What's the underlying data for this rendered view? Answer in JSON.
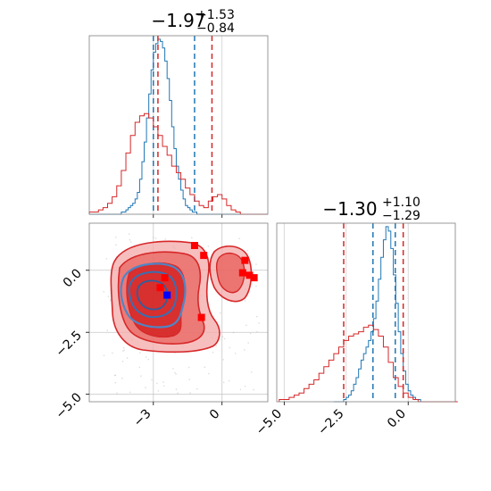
{
  "chart_data": [
    {
      "id": "hist-param1",
      "type": "histogram",
      "title": {
        "main": "−1.97",
        "sup": "+1.53",
        "sub": "−0.84"
      },
      "xlim": [
        -5.8,
        2.0
      ],
      "grid": true,
      "series": [
        {
          "color": "#1f77b4",
          "bin_start": -5.8,
          "bin_width": 0.1,
          "counts": [
            0,
            0,
            0,
            0,
            0,
            0,
            0,
            0,
            0,
            0,
            0,
            0,
            0,
            0,
            1,
            1,
            2,
            3,
            4,
            5,
            7,
            10,
            16,
            24,
            33,
            44,
            55,
            66,
            74,
            78,
            80,
            79,
            76,
            70,
            62,
            52,
            40,
            30,
            22,
            16,
            11,
            7,
            4,
            3,
            2,
            1,
            1,
            0,
            0,
            0,
            0,
            0,
            0,
            0,
            0,
            0,
            0,
            0,
            0,
            0,
            0,
            0,
            0,
            0,
            0,
            0,
            0,
            0,
            0,
            0,
            0,
            0,
            0,
            0,
            0,
            0,
            0,
            0
          ],
          "quantile_lines": [
            -3.0,
            -1.2
          ]
        },
        {
          "color": "#d62728",
          "bin_start": -5.8,
          "bin_width": 0.2,
          "counts": [
            1,
            1,
            2,
            3,
            5,
            8,
            13,
            20,
            28,
            36,
            42,
            45,
            46,
            44,
            40,
            36,
            31,
            27,
            22,
            19,
            16,
            12,
            9,
            6,
            4,
            3,
            6,
            8,
            9,
            7,
            4,
            2,
            1,
            0,
            0,
            0,
            0,
            0,
            0
          ],
          "quantile_lines": [
            -2.8,
            -0.44
          ]
        }
      ]
    },
    {
      "id": "hist-param2",
      "type": "histogram",
      "title": {
        "main": "−1.30",
        "sup": "+1.10",
        "sub": "−1.29"
      },
      "xlim": [
        -5.3,
        1.9
      ],
      "xticks": [
        "−5.0",
        "−2.5",
        "0.0"
      ],
      "xtick_values": [
        -5.0,
        -2.5,
        0.0
      ],
      "grid": true,
      "series": [
        {
          "color": "#1f77b4",
          "bin_start": -3.0,
          "bin_width": 0.1,
          "counts": [
            0,
            0,
            0,
            0,
            1,
            2,
            3,
            5,
            8,
            11,
            15,
            19,
            22,
            25,
            28,
            32,
            38,
            46,
            56,
            66,
            74,
            80,
            78,
            70,
            58,
            45,
            32,
            22,
            14,
            8,
            5,
            3,
            2,
            1,
            1,
            0,
            0,
            0,
            0,
            0
          ],
          "quantile_lines": [
            -1.42,
            -0.52
          ]
        },
        {
          "color": "#d62728",
          "bin_start": -5.2,
          "bin_width": 0.2,
          "counts": [
            1,
            1,
            2,
            3,
            4,
            6,
            8,
            10,
            13,
            16,
            19,
            22,
            25,
            28,
            30,
            31,
            32,
            34,
            35,
            33,
            30,
            25,
            18,
            11,
            7,
            4,
            2,
            1,
            0,
            0,
            0,
            0,
            0,
            0,
            0,
            0
          ],
          "quantile_lines": [
            -2.6,
            -0.2
          ]
        }
      ]
    },
    {
      "id": "contour-2d",
      "type": "contour",
      "xlim": [
        -5.8,
        2.0
      ],
      "ylim": [
        -5.3,
        1.9
      ],
      "xticks": [
        "−3",
        "0"
      ],
      "xtick_values": [
        -3,
        0
      ],
      "yticks": [
        "0.0",
        "−2.5",
        "−5.0"
      ],
      "ytick_values": [
        0.0,
        -2.5,
        -5.0
      ],
      "grid": true,
      "points_red": [
        [
          -1.2,
          1.0
        ],
        [
          -0.8,
          0.6
        ],
        [
          -2.5,
          -0.3
        ],
        [
          -0.9,
          -1.9
        ],
        [
          1.0,
          0.4
        ],
        [
          1.2,
          -0.2
        ],
        [
          0.9,
          -0.1
        ],
        [
          1.4,
          -0.3
        ],
        [
          -2.7,
          -0.7
        ]
      ],
      "point_blue": [
        -2.4,
        -1.0
      ],
      "marker_colors": {
        "red": "#ff0000",
        "blue": "#0000ff"
      }
    }
  ]
}
